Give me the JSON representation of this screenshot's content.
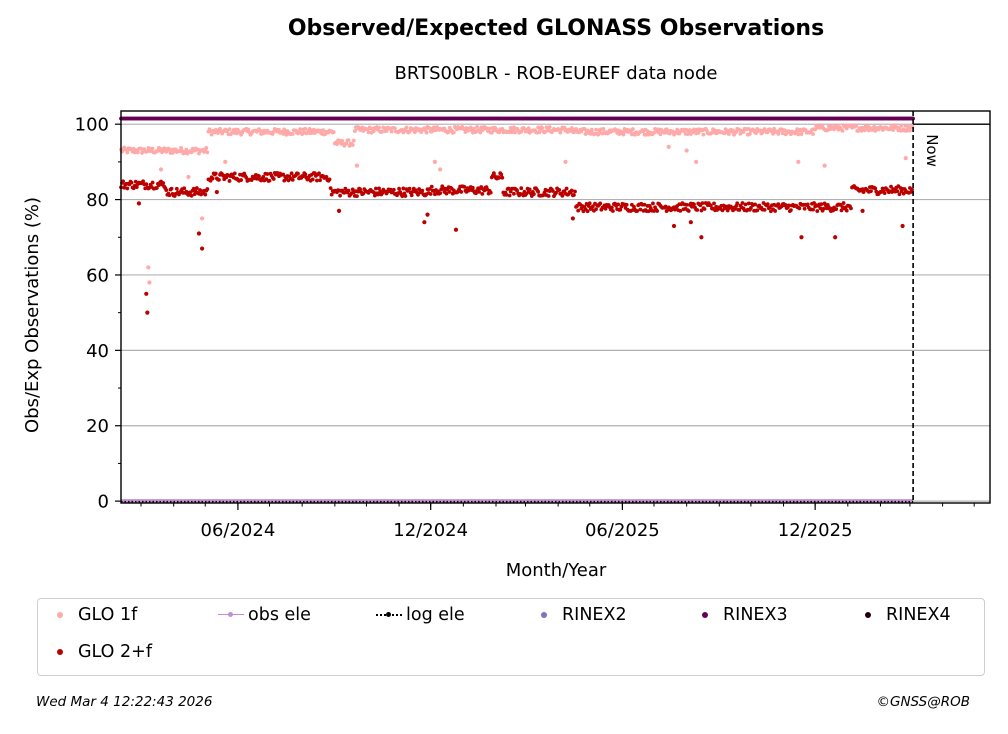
{
  "chart_data": {
    "type": "scatter",
    "title": "Observed/Expected GLONASS Observations",
    "subtitle": "BRTS00BLR - ROB-EUREF data node",
    "xlabel": "Month/Year",
    "ylabel": "Obs/Exp Observations (%)",
    "x_range": [
      "2024-02-11",
      "2026-05-16"
    ],
    "ylim": [
      -0.5,
      103.5
    ],
    "y_ticks": [
      0,
      20,
      40,
      60,
      80,
      100
    ],
    "x_ticks": [
      {
        "date": "2024-06-01",
        "label": "06/2024"
      },
      {
        "date": "2024-12-01",
        "label": "12/2024"
      },
      {
        "date": "2025-06-01",
        "label": "06/2025"
      },
      {
        "date": "2025-12-01",
        "label": "12/2025"
      }
    ],
    "grid": "y",
    "now_marker": {
      "date": "2026-03-04",
      "label": "Now"
    },
    "series": [
      {
        "name": "GLO 1f",
        "color": "#ffa9a9",
        "segments": [
          {
            "from": "2024-02-11",
            "to": "2024-05-04",
            "value": 93
          },
          {
            "from": "2024-05-04",
            "to": "2024-09-01",
            "value": 98
          },
          {
            "from": "2024-09-01",
            "to": "2024-09-20",
            "value": 95
          },
          {
            "from": "2024-09-20",
            "to": "2025-04-15",
            "value": 98.5
          },
          {
            "from": "2025-04-15",
            "to": "2025-12-01",
            "value": 98
          },
          {
            "from": "2025-12-01",
            "to": "2026-03-04",
            "value": 99
          }
        ],
        "outliers": [
          {
            "x": "2024-03-08",
            "y": 62
          },
          {
            "x": "2024-03-09",
            "y": 58
          },
          {
            "x": "2024-03-20",
            "y": 88
          },
          {
            "x": "2024-04-15",
            "y": 86
          },
          {
            "x": "2024-04-28",
            "y": 75
          },
          {
            "x": "2024-05-20",
            "y": 90
          },
          {
            "x": "2024-09-22",
            "y": 89
          },
          {
            "x": "2024-12-05",
            "y": 90
          },
          {
            "x": "2024-12-10",
            "y": 88
          },
          {
            "x": "2025-04-08",
            "y": 90
          },
          {
            "x": "2025-07-15",
            "y": 94
          },
          {
            "x": "2025-08-01",
            "y": 93
          },
          {
            "x": "2025-08-10",
            "y": 90
          },
          {
            "x": "2025-11-15",
            "y": 90
          },
          {
            "x": "2025-12-10",
            "y": 89
          },
          {
            "x": "2026-02-25",
            "y": 91
          }
        ]
      },
      {
        "name": "GLO 2+f",
        "color": "#bb0000",
        "segments": [
          {
            "from": "2024-02-11",
            "to": "2024-03-25",
            "value": 84
          },
          {
            "from": "2024-03-25",
            "to": "2024-05-04",
            "value": 82
          },
          {
            "from": "2024-05-04",
            "to": "2024-08-28",
            "value": 86
          },
          {
            "from": "2024-08-28",
            "to": "2024-12-01",
            "value": 82
          },
          {
            "from": "2024-12-01",
            "to": "2025-01-28",
            "value": 82.5
          },
          {
            "from": "2025-01-28",
            "to": "2025-02-08",
            "value": 86
          },
          {
            "from": "2025-02-08",
            "to": "2025-04-18",
            "value": 82
          },
          {
            "from": "2025-04-18",
            "to": "2026-01-05",
            "value": 78
          },
          {
            "from": "2026-01-05",
            "to": "2026-03-04",
            "value": 82.5
          }
        ],
        "outliers": [
          {
            "x": "2024-03-06",
            "y": 55
          },
          {
            "x": "2024-03-07",
            "y": 50
          },
          {
            "x": "2024-02-28",
            "y": 79
          },
          {
            "x": "2024-04-25",
            "y": 71
          },
          {
            "x": "2024-04-28",
            "y": 67
          },
          {
            "x": "2024-05-12",
            "y": 82
          },
          {
            "x": "2024-09-05",
            "y": 77
          },
          {
            "x": "2024-11-25",
            "y": 74
          },
          {
            "x": "2024-11-28",
            "y": 76
          },
          {
            "x": "2024-12-25",
            "y": 72
          },
          {
            "x": "2025-04-15",
            "y": 75
          },
          {
            "x": "2025-07-20",
            "y": 73
          },
          {
            "x": "2025-08-05",
            "y": 74
          },
          {
            "x": "2025-08-15",
            "y": 70
          },
          {
            "x": "2025-11-18",
            "y": 70
          },
          {
            "x": "2025-12-20",
            "y": 70
          },
          {
            "x": "2026-01-15",
            "y": 77
          },
          {
            "x": "2026-02-22",
            "y": 73
          }
        ]
      },
      {
        "name": "obs ele",
        "color": "#c090d0",
        "value": 0
      },
      {
        "name": "log ele",
        "color": "#000000",
        "value": 0
      },
      {
        "name": "RINEX2",
        "color": "#8070c0"
      },
      {
        "name": "RINEX3",
        "color": "#660055",
        "value": 101.5
      },
      {
        "name": "RINEX4",
        "color": "#220011"
      }
    ]
  },
  "footer": {
    "timestamp": "Wed Mar  4 12:22:43 2026",
    "credit": "©GNSS@ROB"
  }
}
